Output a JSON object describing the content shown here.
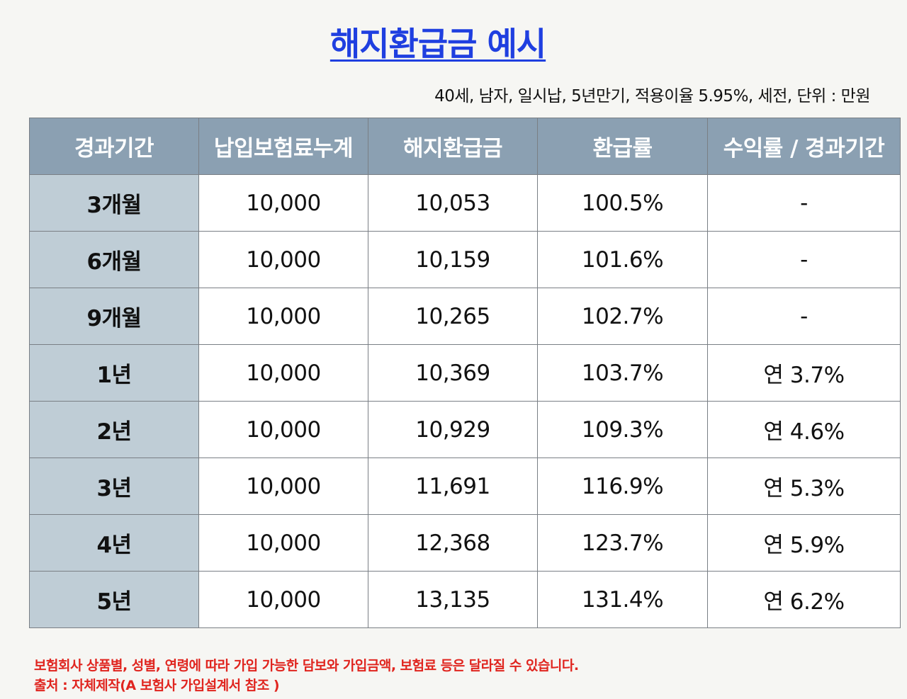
{
  "title": "해지환급금 예시",
  "subtitle": "40세, 남자, 일시납, 5년만기, 적용이율 5.95%, 세전, 단위 : 만원",
  "table": {
    "headers": [
      "경과기간",
      "납입보험료누계",
      "해지환급금",
      "환급률",
      "수익률 / 경과기간"
    ],
    "rows": [
      [
        "3개월",
        "10,000",
        "10,053",
        "100.5%",
        "-"
      ],
      [
        "6개월",
        "10,000",
        "10,159",
        "101.6%",
        "-"
      ],
      [
        "9개월",
        "10,000",
        "10,265",
        "102.7%",
        "-"
      ],
      [
        "1년",
        "10,000",
        "10,369",
        "103.7%",
        "연 3.7%"
      ],
      [
        "2년",
        "10,000",
        "10,929",
        "109.3%",
        "연 4.6%"
      ],
      [
        "3년",
        "10,000",
        "11,691",
        "116.9%",
        "연 5.3%"
      ],
      [
        "4년",
        "10,000",
        "12,368",
        "123.7%",
        "연 5.9%"
      ],
      [
        "5년",
        "10,000",
        "13,135",
        "131.4%",
        "연 6.2%"
      ]
    ]
  },
  "notes": {
    "disclaimer": "보험회사 상품별, 성별, 연령에 따라 가입 가능한 담보와 가입금액, 보험료 등은 달라질 수 있습니다.",
    "source": "출처 : 자체제작(A 보험사 가입설계서 참조 )"
  },
  "colors": {
    "title": "#1f3fe0",
    "header_bg": "#8ba0b2",
    "period_bg": "#bfcdd6",
    "note": "#e0251f"
  }
}
